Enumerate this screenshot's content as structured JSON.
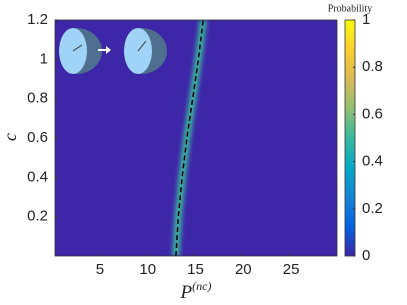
{
  "chart_data": {
    "type": "heatmap",
    "xlabel": {
      "base": "P",
      "superscript": "(nc)"
    },
    "ylabel": "c",
    "xlim": [
      0.3,
      29.8
    ],
    "xticks": [
      5,
      10,
      15,
      20,
      25
    ],
    "ylim": [
      0,
      1.2
    ],
    "yticks": [
      0.2,
      0.4,
      0.6,
      0.8,
      1,
      1.2
    ],
    "background_value": 0,
    "curve": {
      "x": [
        12.95,
        13.2,
        13.6,
        14.1,
        14.7,
        15.3,
        15.8
      ],
      "y": [
        0,
        0.2,
        0.4,
        0.6,
        0.8,
        1.0,
        1.2
      ],
      "color": "#000000",
      "glow_value": 0.45
    },
    "colorbar": {
      "label": "Probability",
      "lim": [
        0,
        1
      ],
      "ticks": [
        0,
        0.2,
        0.4,
        0.6,
        0.8,
        1
      ]
    },
    "colormap": [
      "#3e26a8",
      "#0363e1",
      "#1485d4",
      "#06a7c6",
      "#38b99e",
      "#92bf73",
      "#d9ba56",
      "#fcce2e",
      "#f9fb0e"
    ]
  }
}
